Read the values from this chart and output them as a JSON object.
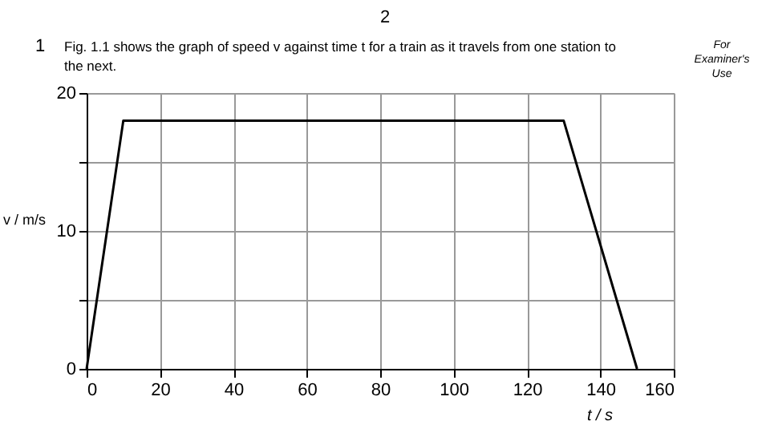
{
  "chart_data": {
    "type": "line",
    "title": "Fig. 1.1 shows the graph of speed v against time t for a train as it travels from one station to the next.",
    "annotations": [
      "2",
      "1",
      "For Examiner's Use"
    ],
    "xlabel": "t / s",
    "ylabel": "v / m/s",
    "x": [
      0,
      10,
      130,
      150
    ],
    "series": [
      {
        "color": "#000000",
        "values": [
          0,
          18,
          18,
          0
        ]
      }
    ],
    "xlim": [
      0,
      160
    ],
    "xticks": [
      0,
      20,
      40,
      60,
      80,
      100,
      120,
      140,
      160
    ],
    "ylim": [
      0,
      20
    ],
    "yticks": [
      0,
      {
        "value": 5,
        "label": null
      },
      10,
      {
        "value": 15,
        "label": null
      },
      20
    ],
    "grid": true,
    "marker": "none",
    "line_style": "solid"
  }
}
